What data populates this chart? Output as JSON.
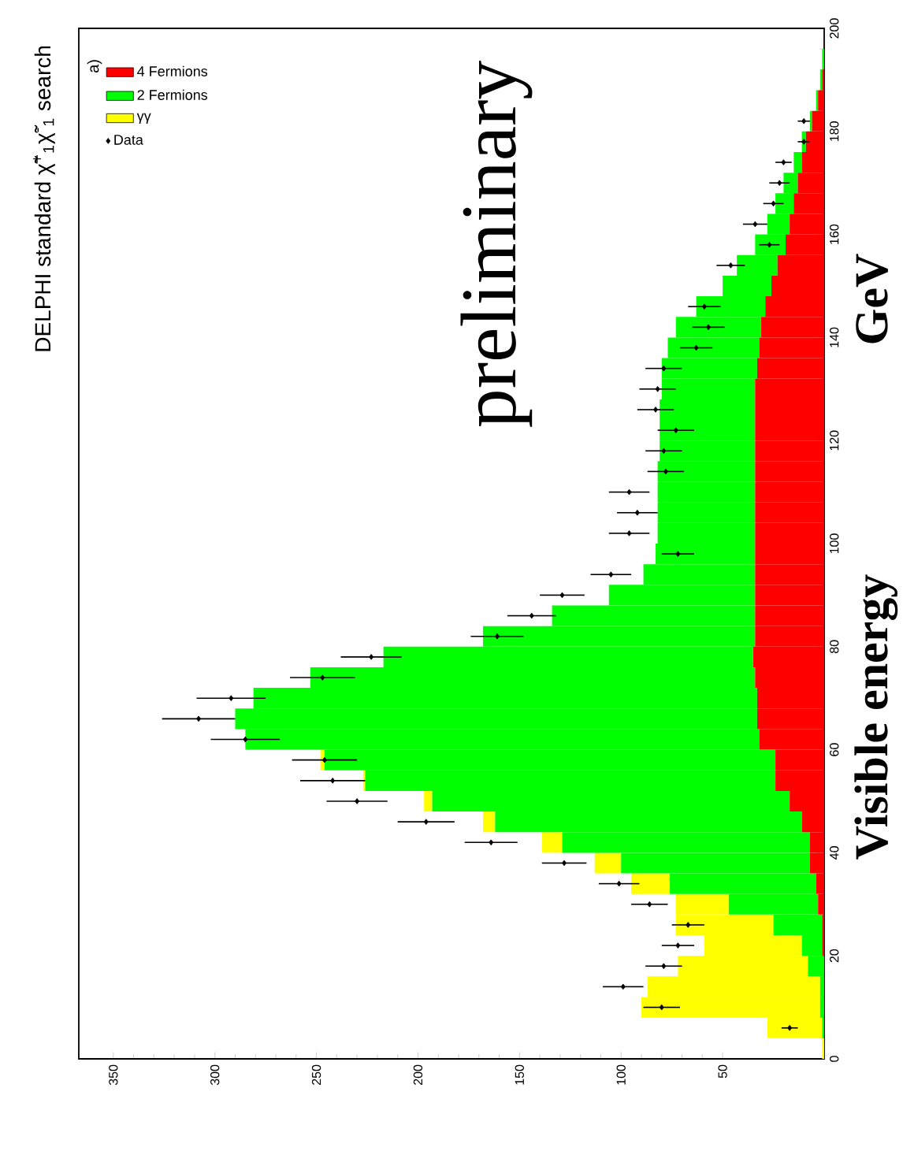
{
  "chart_data": {
    "type": "bar",
    "orientation": "horizontal",
    "title": "DELPHI standard χ̃$^{+}$$_{1}$χ̃$^{-}$$_{1}$ search",
    "ylabel": "Visible energy",
    "annotations": [
      "a)",
      "preliminary",
      "GeV"
    ],
    "x": [
      2,
      6,
      10,
      14,
      18,
      22,
      26,
      30,
      34,
      38,
      42,
      46,
      50,
      54,
      58,
      62,
      66,
      70,
      74,
      78,
      82,
      86,
      90,
      94,
      98,
      102,
      106,
      110,
      114,
      118,
      122,
      126,
      130,
      134,
      138,
      142,
      146,
      150,
      154,
      158,
      162,
      166,
      170,
      174,
      178,
      182,
      186,
      190,
      194,
      198
    ],
    "stacked": true,
    "legend": "top left",
    "series": [
      {
        "name": "4 Fermions",
        "color": "#ff0000",
        "values": [
          0,
          0,
          0,
          0,
          0,
          1,
          1,
          3,
          4,
          7,
          7,
          11,
          17,
          24,
          24,
          32,
          33,
          33,
          34,
          35,
          34,
          34,
          34,
          34,
          34,
          34,
          34,
          34,
          34,
          34,
          34,
          34,
          34,
          33,
          32,
          31,
          29,
          26,
          23,
          19,
          17,
          15,
          13,
          11,
          9,
          6,
          3,
          1,
          0,
          0
        ]
      },
      {
        "name": "2 Fermions",
        "color": "#00ff00",
        "values": [
          0,
          1,
          2,
          2,
          8,
          10,
          24,
          44,
          72,
          93,
          122,
          151,
          176,
          202,
          222,
          253,
          257,
          248,
          219,
          182,
          134,
          100,
          72,
          55,
          49,
          48,
          48,
          48,
          48,
          47,
          47,
          47,
          46,
          47,
          45,
          42,
          34,
          24,
          20,
          15,
          11,
          9,
          7,
          4,
          2,
          1,
          1,
          1,
          1,
          0
        ]
      },
      {
        "name": "γγ",
        "color": "#ffff00",
        "values": [
          1,
          27,
          88,
          85,
          64,
          48,
          48,
          26,
          19,
          13,
          10,
          6,
          4,
          1,
          2,
          0,
          0,
          0,
          0,
          0,
          0,
          0,
          0,
          0,
          0,
          0,
          0,
          0,
          0,
          0,
          0,
          0,
          0,
          0,
          0,
          0,
          0,
          0,
          0,
          0,
          0,
          0,
          0,
          0,
          0,
          0,
          0,
          0,
          0,
          0
        ]
      },
      {
        "name": "Data",
        "type": "scatter",
        "color": "#000000",
        "marker": "diamond",
        "x": [
          6,
          10,
          14,
          18,
          22,
          26,
          30,
          34,
          38,
          42,
          46,
          50,
          54,
          58,
          62,
          66,
          70,
          74,
          78,
          82,
          86,
          90,
          94,
          98,
          102,
          106,
          110,
          114,
          118,
          122,
          126,
          130,
          134,
          138,
          142,
          146,
          154,
          158,
          162,
          166,
          170,
          174,
          178,
          182
        ],
        "values": [
          17,
          80,
          99,
          79,
          72,
          67,
          86,
          101,
          128,
          164,
          196,
          230,
          242,
          246,
          285,
          308,
          292,
          247,
          223,
          161,
          144,
          129,
          105,
          72,
          96,
          92,
          96,
          78,
          79,
          73,
          83,
          82,
          79,
          63,
          57,
          59,
          46,
          27,
          34,
          25,
          22,
          20,
          10,
          10
        ],
        "errors": [
          4,
          9,
          10,
          9,
          8,
          8,
          9,
          10,
          11,
          13,
          14,
          15,
          16,
          16,
          17,
          18,
          17,
          16,
          15,
          13,
          12,
          11,
          10,
          8,
          10,
          10,
          10,
          9,
          9,
          9,
          9,
          9,
          9,
          8,
          8,
          8,
          7,
          5,
          6,
          5,
          5,
          4,
          3,
          3
        ]
      }
    ],
    "xlim": [
      367,
      0
    ],
    "xticks": [
      50,
      100,
      150,
      200,
      250,
      300,
      350
    ],
    "ylim": [
      0,
      200
    ],
    "yticks": [
      0,
      20,
      40,
      60,
      80,
      100,
      120,
      140,
      160,
      180,
      200
    ]
  }
}
